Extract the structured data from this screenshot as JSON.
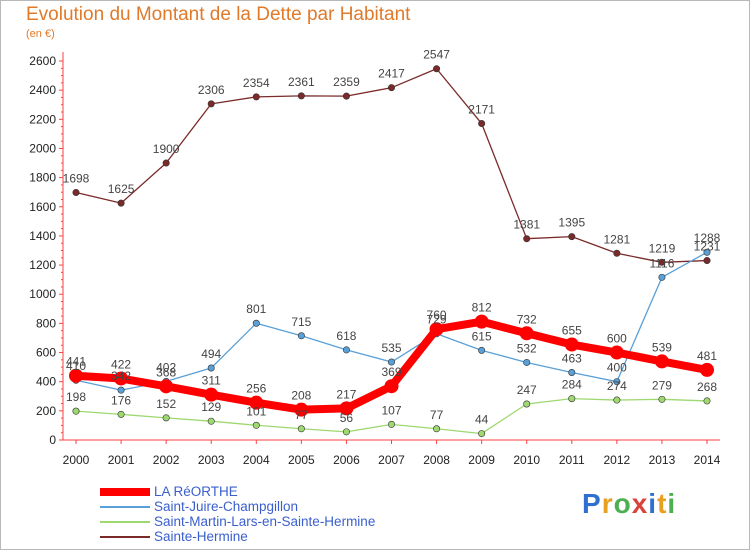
{
  "title": "Evolution du Montant de la Dette par Habitant",
  "subtitle": "(en €)",
  "logo": {
    "letters": [
      "P",
      "r",
      "o",
      "x",
      "i",
      "t",
      "i"
    ],
    "colors": [
      "#2f6fd0",
      "#e8a020",
      "#4caf50",
      "#d9433b",
      "#2f6fd0",
      "#e8a020",
      "#4caf50"
    ]
  },
  "chart_data": {
    "type": "line",
    "title": "Evolution du Montant de la Dette par Habitant",
    "subtitle": "(en €)",
    "x": [
      "2000",
      "2001",
      "2002",
      "2003",
      "2004",
      "2005",
      "2006",
      "2007",
      "2008",
      "2009",
      "2010",
      "2011",
      "2012",
      "2013",
      "2014"
    ],
    "ylim": [
      0,
      2600
    ],
    "yticks": [
      "0",
      "200",
      "400",
      "600",
      "800",
      "1000",
      "1200",
      "1400",
      "1600",
      "1800",
      "2000",
      "2200",
      "2400",
      "2600"
    ],
    "grid": false,
    "legend_position": "bottom-left",
    "series": [
      {
        "name": "Sainte-Hermine",
        "color": "#7b2a2a",
        "values": [
          1698,
          1625,
          1900,
          2306,
          2354,
          2361,
          2359,
          2417,
          2547,
          2171,
          1381,
          1395,
          1281,
          1219,
          1231
        ]
      },
      {
        "name": "Saint-Juire-Champgillon",
        "color": "#5aa0d8",
        "values": [
          410,
          342,
          402,
          494,
          801,
          715,
          618,
          535,
          729,
          615,
          532,
          463,
          400,
          1116,
          1288
        ]
      },
      {
        "name": "Saint-Martin-Lars-en-Sainte-Hermine",
        "color": "#9ed870",
        "values": [
          198,
          176,
          152,
          129,
          101,
          77,
          56,
          107,
          77,
          44,
          247,
          284,
          274,
          279,
          268
        ]
      },
      {
        "name": "LA RéORTHE",
        "color": "#ff0000",
        "values": [
          441,
          422,
          368,
          311,
          256,
          208,
          217,
          369,
          760,
          812,
          732,
          655,
          600,
          539,
          481
        ]
      }
    ]
  }
}
